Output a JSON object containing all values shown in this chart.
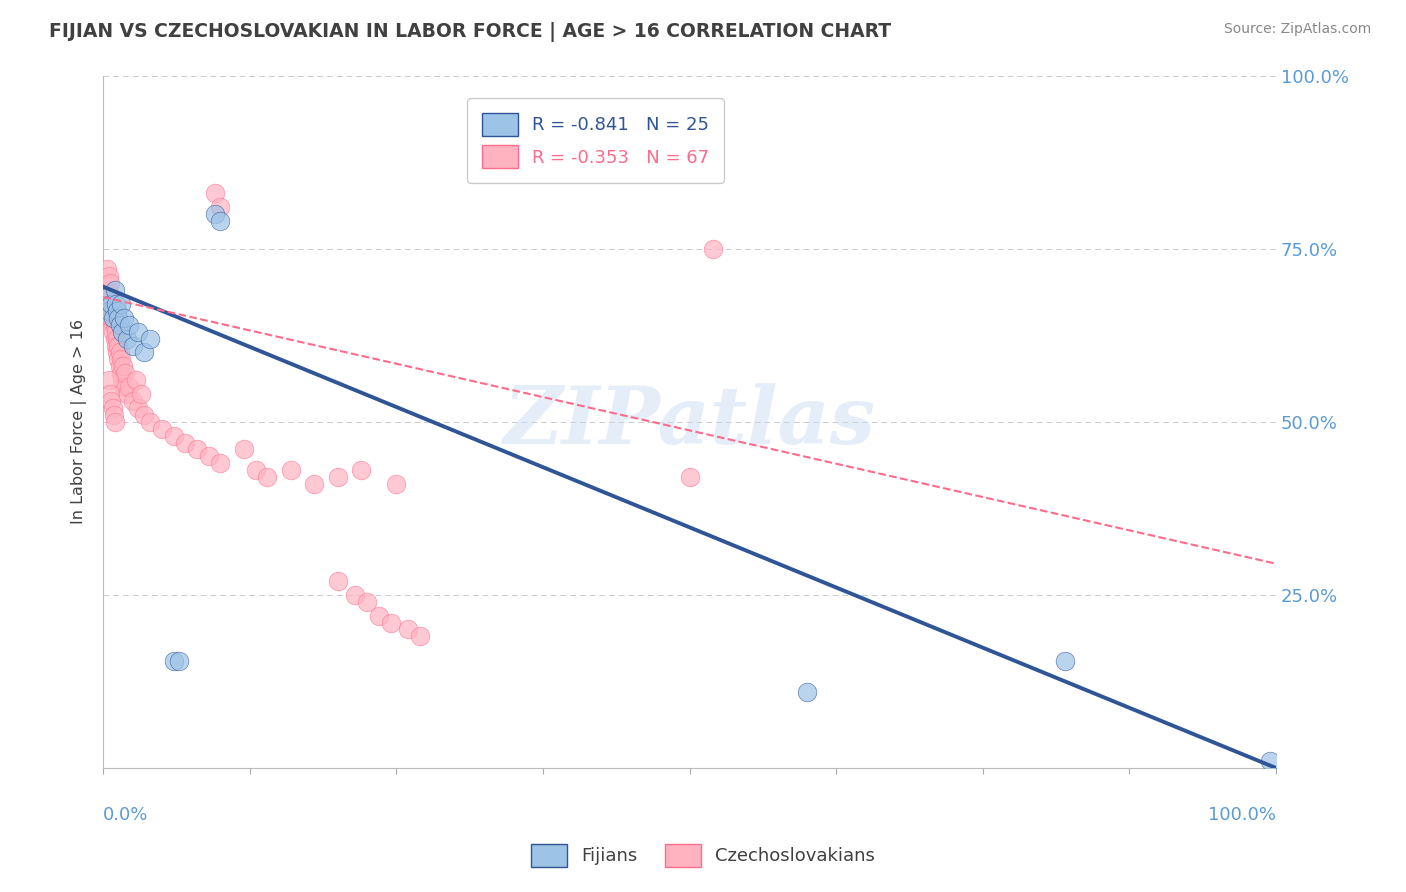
{
  "title": "FIJIAN VS CZECHOSLOVAKIAN IN LABOR FORCE | AGE > 16 CORRELATION CHART",
  "source_text": "Source: ZipAtlas.com",
  "ylabel": "In Labor Force | Age > 16",
  "watermark": "ZIPatlas",
  "legend_blue_text": "R = -0.841   N = 25",
  "legend_pink_text": "R = -0.353   N = 67",
  "legend_fijians": "Fijians",
  "legend_czech": "Czechoslovakians",
  "blue_scatter_color": "#9DC3E6",
  "pink_scatter_color": "#FFB3C1",
  "blue_line_color": "#2F5597",
  "pink_line_color": "#FF6B8A",
  "background_color": "#FFFFFF",
  "grid_color": "#CCCCCC",
  "title_color": "#404040",
  "right_label_color": "#5B9BD5",
  "source_color": "#888888",
  "watermark_color": "#C5D9F1",
  "blue_intercept": 0.695,
  "blue_slope": -0.695,
  "pink_intercept": 0.68,
  "pink_slope": -0.385,
  "fijian_points": [
    [
      0.003,
      0.68
    ],
    [
      0.005,
      0.66
    ],
    [
      0.007,
      0.67
    ],
    [
      0.008,
      0.65
    ],
    [
      0.01,
      0.69
    ],
    [
      0.011,
      0.67
    ],
    [
      0.012,
      0.66
    ],
    [
      0.013,
      0.65
    ],
    [
      0.014,
      0.64
    ],
    [
      0.015,
      0.67
    ],
    [
      0.016,
      0.63
    ],
    [
      0.018,
      0.65
    ],
    [
      0.02,
      0.62
    ],
    [
      0.022,
      0.64
    ],
    [
      0.025,
      0.61
    ],
    [
      0.03,
      0.63
    ],
    [
      0.035,
      0.6
    ],
    [
      0.04,
      0.62
    ],
    [
      0.06,
      0.155
    ],
    [
      0.095,
      0.8
    ],
    [
      0.1,
      0.79
    ],
    [
      0.065,
      0.155
    ],
    [
      0.6,
      0.11
    ],
    [
      0.82,
      0.155
    ],
    [
      0.995,
      0.01
    ]
  ],
  "czech_points": [
    [
      0.003,
      0.72
    ],
    [
      0.004,
      0.69
    ],
    [
      0.005,
      0.71
    ],
    [
      0.005,
      0.68
    ],
    [
      0.006,
      0.66
    ],
    [
      0.006,
      0.7
    ],
    [
      0.007,
      0.65
    ],
    [
      0.007,
      0.67
    ],
    [
      0.008,
      0.64
    ],
    [
      0.008,
      0.63
    ],
    [
      0.009,
      0.66
    ],
    [
      0.009,
      0.65
    ],
    [
      0.01,
      0.62
    ],
    [
      0.01,
      0.64
    ],
    [
      0.011,
      0.63
    ],
    [
      0.011,
      0.61
    ],
    [
      0.012,
      0.62
    ],
    [
      0.012,
      0.6
    ],
    [
      0.013,
      0.61
    ],
    [
      0.013,
      0.59
    ],
    [
      0.014,
      0.6
    ],
    [
      0.014,
      0.58
    ],
    [
      0.015,
      0.57
    ],
    [
      0.015,
      0.59
    ],
    [
      0.016,
      0.56
    ],
    [
      0.017,
      0.58
    ],
    [
      0.018,
      0.55
    ],
    [
      0.019,
      0.57
    ],
    [
      0.02,
      0.54
    ],
    [
      0.022,
      0.55
    ],
    [
      0.025,
      0.53
    ],
    [
      0.028,
      0.56
    ],
    [
      0.03,
      0.52
    ],
    [
      0.032,
      0.54
    ],
    [
      0.035,
      0.51
    ],
    [
      0.005,
      0.56
    ],
    [
      0.006,
      0.54
    ],
    [
      0.007,
      0.53
    ],
    [
      0.008,
      0.52
    ],
    [
      0.009,
      0.51
    ],
    [
      0.01,
      0.5
    ],
    [
      0.04,
      0.5
    ],
    [
      0.05,
      0.49
    ],
    [
      0.06,
      0.48
    ],
    [
      0.07,
      0.47
    ],
    [
      0.08,
      0.46
    ],
    [
      0.09,
      0.45
    ],
    [
      0.1,
      0.44
    ],
    [
      0.12,
      0.46
    ],
    [
      0.13,
      0.43
    ],
    [
      0.095,
      0.83
    ],
    [
      0.1,
      0.81
    ],
    [
      0.14,
      0.42
    ],
    [
      0.16,
      0.43
    ],
    [
      0.18,
      0.41
    ],
    [
      0.2,
      0.42
    ],
    [
      0.22,
      0.43
    ],
    [
      0.25,
      0.41
    ],
    [
      0.2,
      0.27
    ],
    [
      0.215,
      0.25
    ],
    [
      0.225,
      0.24
    ],
    [
      0.235,
      0.22
    ],
    [
      0.245,
      0.21
    ],
    [
      0.26,
      0.2
    ],
    [
      0.27,
      0.19
    ],
    [
      0.52,
      0.75
    ],
    [
      0.5,
      0.42
    ]
  ]
}
